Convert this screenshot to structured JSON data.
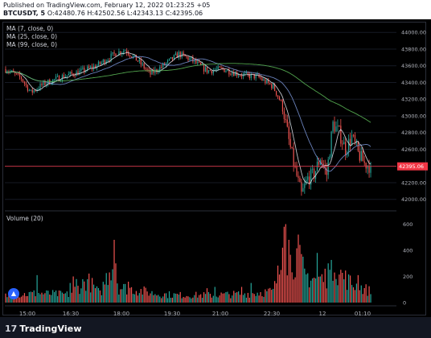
{
  "header": {
    "published": "Published on TradingView.com, February 12, 2022 01:23:25 +05",
    "symbol": "BTCUSDT, 5",
    "ohlc": "O:42480.76 H:42502.56 L:42343.13 C:42395.06"
  },
  "indicators": {
    "ma7": "MA (7, close, 0)",
    "ma25": "MA (25, close, 0)",
    "ma99": "MA (99, close, 0)",
    "volume": "Volume (20)"
  },
  "footer": {
    "brand": "TradingView",
    "logo_icon": "tradingview-logo-icon"
  },
  "colors": {
    "up": "#26a69a",
    "down": "#ef5350",
    "ma7": "#e0e3eb",
    "ma25": "#7b97d9",
    "ma99": "#5fbf5a",
    "price_line": "#f23645",
    "price_label": "#f23645"
  },
  "chart_data": {
    "type": "candlestick",
    "symbol": "BTCUSDT",
    "interval": "5",
    "y_axis": {
      "ticks": [
        44000,
        43800,
        43600,
        43400,
        43200,
        43000,
        42800,
        42600,
        42400,
        42200,
        42000
      ],
      "tick_labels": [
        "44000.00",
        "43800.00",
        "43600.00",
        "43400.00",
        "43200.00",
        "43000.00",
        "42800.00",
        "42600.00",
        "42400.00",
        "42200.00",
        "42000.00"
      ],
      "range": [
        41920,
        44060
      ]
    },
    "volume_axis": {
      "tick_labels": [
        "600",
        "400",
        "200",
        "0"
      ],
      "ticks": [
        600,
        400,
        200,
        0
      ],
      "range": [
        0,
        640
      ]
    },
    "x_axis": {
      "tick_labels": [
        "15:00",
        "16:30",
        "18:00",
        "19:30",
        "21:00",
        "22:30",
        "12",
        "01:10"
      ]
    },
    "last_price": 42395.06,
    "last_price_label": "42395.06",
    "price_anchors": [
      [
        0,
        43560
      ],
      [
        10,
        43450
      ],
      [
        16,
        43280
      ],
      [
        24,
        43380
      ],
      [
        36,
        43470
      ],
      [
        46,
        43520
      ],
      [
        58,
        43600
      ],
      [
        70,
        43750
      ],
      [
        76,
        43790
      ],
      [
        84,
        43660
      ],
      [
        92,
        43500
      ],
      [
        100,
        43600
      ],
      [
        110,
        43740
      ],
      [
        118,
        43670
      ],
      [
        128,
        43540
      ],
      [
        138,
        43560
      ],
      [
        150,
        43490
      ],
      [
        160,
        43470
      ],
      [
        170,
        43350
      ],
      [
        176,
        43120
      ],
      [
        180,
        42700
      ],
      [
        184,
        42350
      ],
      [
        188,
        42050
      ],
      [
        192,
        42250
      ],
      [
        196,
        42300
      ],
      [
        200,
        42500
      ],
      [
        204,
        42300
      ],
      [
        208,
        42900
      ],
      [
        212,
        42800
      ],
      [
        216,
        42600
      ],
      [
        220,
        42750
      ],
      [
        224,
        42550
      ],
      [
        228,
        42430
      ],
      [
        232,
        42395
      ]
    ],
    "volume_anchors": [
      [
        0,
        55
      ],
      [
        20,
        75
      ],
      [
        40,
        65
      ],
      [
        52,
        180
      ],
      [
        60,
        70
      ],
      [
        68,
        330
      ],
      [
        72,
        120
      ],
      [
        80,
        110
      ],
      [
        96,
        70
      ],
      [
        110,
        60
      ],
      [
        130,
        60
      ],
      [
        150,
        70
      ],
      [
        170,
        90
      ],
      [
        176,
        340
      ],
      [
        178,
        470
      ],
      [
        180,
        320
      ],
      [
        186,
        380
      ],
      [
        190,
        220
      ],
      [
        200,
        180
      ],
      [
        210,
        260
      ],
      [
        220,
        150
      ],
      [
        232,
        90
      ]
    ],
    "volume_spikes": [
      [
        20,
        210
      ],
      [
        41,
        150
      ],
      [
        43,
        200
      ],
      [
        45,
        180
      ],
      [
        69,
        480
      ],
      [
        70,
        300
      ],
      [
        78,
        160
      ],
      [
        128,
        110
      ],
      [
        133,
        120
      ],
      [
        145,
        90
      ],
      [
        150,
        120
      ],
      [
        156,
        150
      ],
      [
        176,
        420
      ],
      [
        177,
        580
      ],
      [
        178,
        600
      ],
      [
        180,
        480
      ],
      [
        186,
        520
      ],
      [
        190,
        260
      ],
      [
        198,
        380
      ],
      [
        200,
        200
      ],
      [
        205,
        300
      ],
      [
        209,
        230
      ],
      [
        224,
        210
      ]
    ],
    "ma_periods": [
      7,
      25,
      99
    ]
  }
}
